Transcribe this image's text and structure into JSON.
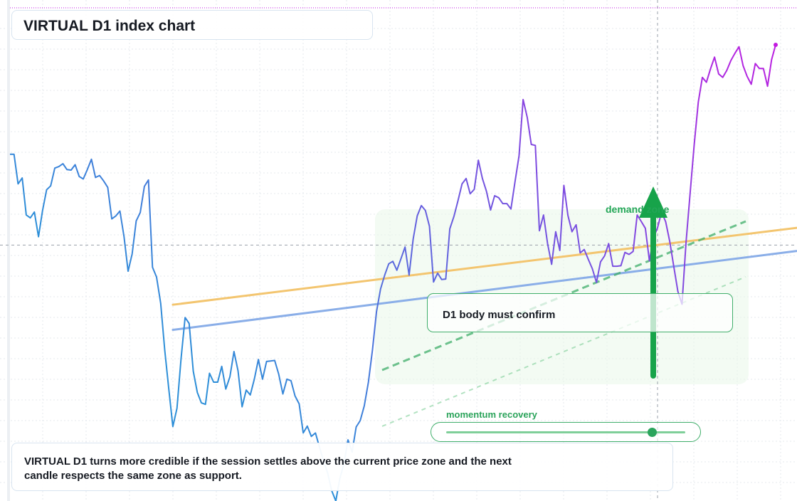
{
  "title": "VIRTUAL D1 index chart",
  "colors": {
    "line_start": "#2d8fd8",
    "line_end": "#c21ae0",
    "resistance_line": "#f3c56f",
    "support_line": "#8aaee8",
    "zone_arrow": "#17a34a",
    "zone_fill": "#eaf8ea",
    "grid": "#e4e8ee"
  },
  "annotations": {
    "confirm_text": "D1 body must confirm",
    "demand_zone_label": "demand zone",
    "momentum_label": "momentum recovery",
    "momentum_level": 0.86,
    "note_text": "VIRTUAL D1 turns more credible if the session settles above the current price zone and the next candle respects the same zone as support."
  },
  "chart_data": {
    "type": "line",
    "title": "VIRTUAL D1 index chart",
    "xlabel": "",
    "ylabel": "",
    "ylim": [
      0,
      100
    ],
    "grid": true,
    "crosshair": {
      "x": 159,
      "y": 51.9
    },
    "series": [
      {
        "values": [
          70.3,
          70.3,
          64.3,
          65.5,
          58.0,
          57.4,
          58.6,
          53.6,
          58.9,
          63.1,
          63.9,
          67.5,
          67.8,
          68.4,
          67.2,
          67.1,
          68.2,
          65.8,
          65.3,
          67.2,
          69.3,
          65.6,
          66.0,
          64.9,
          63.6,
          57.2,
          57.8,
          58.8,
          53.6,
          46.6,
          50.1,
          56.8,
          58.5,
          63.8,
          65.1,
          47.4,
          45.4,
          40.1,
          30.6,
          22.7,
          15.1,
          18.8,
          28.8,
          37.2,
          36.0,
          26.3,
          22.0,
          19.9,
          19.6,
          25.9,
          24.1,
          24.1,
          27.3,
          22.7,
          25.2,
          30.3,
          26.4,
          19.1,
          22.5,
          21.5,
          24.7,
          28.7,
          24.7,
          28.3,
          28.4,
          28.5,
          25.7,
          21.7,
          24.7,
          24.4,
          21.3,
          19.7,
          13.8,
          15.2,
          13.1,
          13.8,
          10.9,
          8.1,
          5.7,
          2.1,
          0.0,
          4.6,
          7.5,
          12.4,
          9.9,
          15.0,
          16.3,
          19.3,
          24.1,
          30.6,
          38.4,
          43.0,
          45.8,
          48.1,
          48.6,
          46.8,
          49.1,
          51.5,
          45.8,
          53.1,
          57.8,
          59.9,
          58.9,
          55.7,
          44.4,
          46.2,
          44.9,
          45.0,
          55.2,
          57.7,
          60.9,
          64.3,
          65.4,
          62.3,
          63.2,
          69.1,
          65.4,
          62.8,
          59.0,
          61.9,
          61.5,
          60.3,
          60.3,
          59.2,
          64.7,
          70.0,
          81.4,
          77.8,
          72.3,
          72.1,
          54.8,
          58.0,
          52.2,
          48.0,
          54.6,
          50.8,
          64.0,
          57.9,
          54.6,
          56.0,
          50.3,
          51.0,
          49.0,
          47.1,
          44.3,
          48.5,
          49.7,
          52.2,
          47.6,
          47.6,
          47.7,
          50.4,
          50.0,
          50.6,
          58.0,
          56.7,
          55.3,
          48.7,
          53.4,
          55.4,
          58.6,
          56.6,
          52.6,
          47.5,
          42.5,
          39.9,
          52.5,
          62.4,
          72.2,
          80.9,
          85.9,
          84.9,
          87.6,
          90.0,
          86.6,
          85.9,
          87.3,
          89.3,
          90.8,
          92.1,
          88.3,
          86.1,
          84.5,
          88.7,
          87.7,
          87.7,
          84.1,
          89.5,
          92.5
        ]
      }
    ],
    "trendlines": [
      {
        "name": "resistance",
        "x": [
          40,
          264
        ],
        "y": [
          39.8,
          62.6
        ]
      },
      {
        "name": "support",
        "x": [
          40,
          264
        ],
        "y": [
          34.7,
          58.1
        ]
      }
    ]
  }
}
